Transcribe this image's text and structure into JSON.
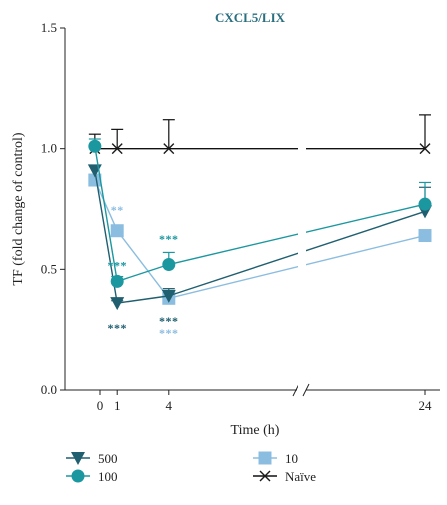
{
  "chart_data": {
    "type": "line",
    "title": "CXCL5/LIX",
    "xlabel": "Time (h)",
    "ylabel": "TF (fold change of control)",
    "x_ticks": [
      "0",
      "1",
      "4",
      "24"
    ],
    "y_ticks": [
      "0.0",
      "0.5",
      "1.0",
      "1.5"
    ],
    "ylim": [
      0,
      1.5
    ],
    "axis_break": true,
    "legend_position": "bottom",
    "colors": {
      "500": "#1f5f70",
      "100": "#1b97a0",
      "10": "#8bbde0",
      "naive": "#1a1a1a",
      "title": "#2a6f80"
    },
    "series": [
      {
        "name": "500",
        "marker": "triangle-down",
        "x": [
          -0.3,
          1,
          4,
          24
        ],
        "y": [
          0.91,
          0.36,
          0.39,
          0.74
        ],
        "err": [
          0.02,
          0.01,
          0.03,
          0.1
        ]
      },
      {
        "name": "100",
        "marker": "circle",
        "x": [
          -0.3,
          1,
          4,
          24
        ],
        "y": [
          1.01,
          0.45,
          0.52,
          0.77
        ],
        "err": [
          0.03,
          0.02,
          0.05,
          0.09
        ]
      },
      {
        "name": "10",
        "marker": "square",
        "x": [
          -0.3,
          1,
          4,
          24
        ],
        "y": [
          0.87,
          0.66,
          0.38,
          0.64
        ],
        "err": [
          0.02,
          0.02,
          0.02,
          0.02
        ]
      },
      {
        "name": "Naïve",
        "marker": "x",
        "x": [
          -0.3,
          1,
          4,
          24
        ],
        "y": [
          1.0,
          1.0,
          1.0,
          1.0
        ],
        "err": [
          0.06,
          0.08,
          0.12,
          0.14
        ]
      }
    ],
    "annotations": [
      {
        "text": "***",
        "series": "500",
        "x": 1,
        "y": 0.24
      },
      {
        "text": "**",
        "series": "10",
        "x": 1,
        "y": 0.73
      },
      {
        "text": "***",
        "series": "100",
        "x": 1,
        "y": 0.5
      },
      {
        "text": "***",
        "series": "100",
        "x": 4,
        "y": 0.61
      },
      {
        "text": "***",
        "series": "500",
        "x": 4,
        "y": 0.27
      },
      {
        "text": "***",
        "series": "10",
        "x": 4,
        "y": 0.22
      }
    ]
  }
}
